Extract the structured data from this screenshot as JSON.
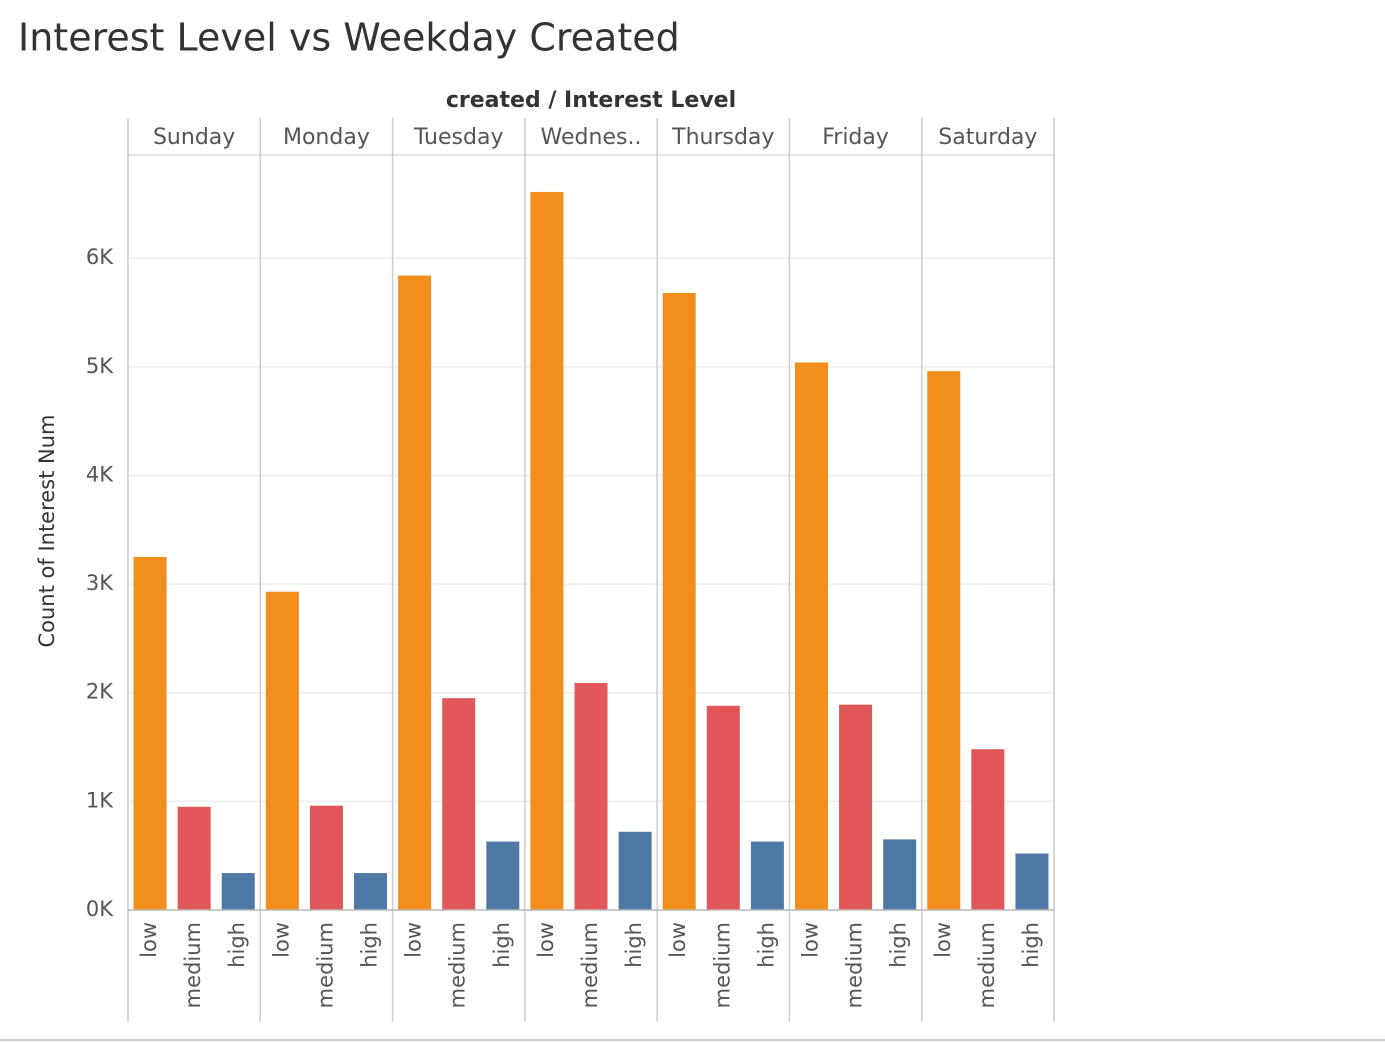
{
  "chart_data": {
    "type": "bar",
    "title": "Interest Level vs Weekday Created",
    "header": "created / Interest Level",
    "y_label": "Count of Interest Num",
    "categories": [
      "Sunday",
      "Monday",
      "Tuesday",
      "Wednes..",
      "Thursday",
      "Friday",
      "Saturday"
    ],
    "series": [
      {
        "name": "low",
        "color": "#f28e1c",
        "values": [
          3250,
          2930,
          5840,
          6610,
          5680,
          5040,
          4960
        ]
      },
      {
        "name": "medium",
        "color": "#e15759",
        "values": [
          950,
          960,
          1950,
          2090,
          1880,
          1890,
          1480
        ]
      },
      {
        "name": "high",
        "color": "#4e79a7",
        "values": [
          340,
          340,
          630,
          720,
          630,
          650,
          520
        ]
      }
    ],
    "ylim": [
      0,
      6950
    ],
    "yticks": [
      {
        "value": 0,
        "label": "0K"
      },
      {
        "value": 1000,
        "label": "1K"
      },
      {
        "value": 2000,
        "label": "2K"
      },
      {
        "value": 3000,
        "label": "3K"
      },
      {
        "value": 4000,
        "label": "4K"
      },
      {
        "value": 5000,
        "label": "5K"
      },
      {
        "value": 6000,
        "label": "6K"
      }
    ],
    "grid": true
  }
}
